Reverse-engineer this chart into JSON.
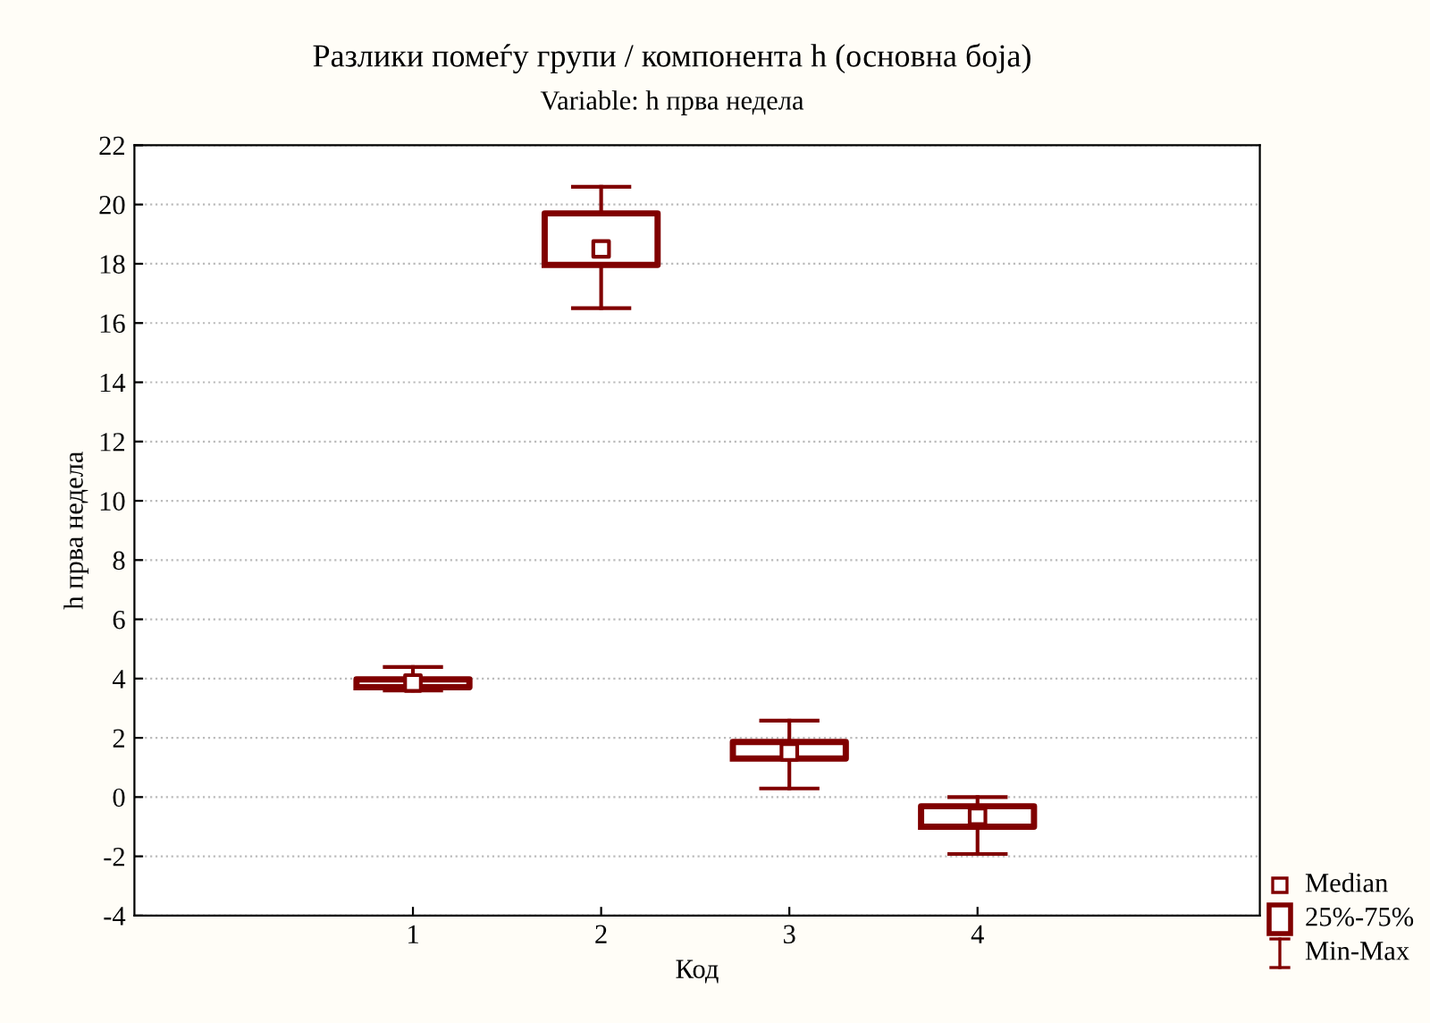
{
  "chart_data": {
    "type": "box",
    "title": "Разлики помеѓу групи / компонента h (основна боја)",
    "subtitle": "Variable: h прва недела",
    "xlabel": "Код",
    "ylabel": "h прва недела",
    "categories": [
      "1",
      "2",
      "3",
      "4"
    ],
    "boxes": [
      {
        "low": 3.6,
        "q1": 3.71,
        "median": 3.85,
        "q3": 3.97,
        "high": 4.39
      },
      {
        "low": 16.5,
        "q1": 17.96,
        "median": 18.5,
        "q3": 19.7,
        "high": 20.6
      },
      {
        "low": 0.29,
        "q1": 1.3,
        "median": 1.52,
        "q3": 1.86,
        "high": 2.58
      },
      {
        "low": -1.92,
        "q1": -1.0,
        "median": -0.65,
        "q3": -0.31,
        "high": 0.0
      }
    ],
    "color": "#800000",
    "ylim": [
      -4,
      22
    ],
    "yticks": [
      -4,
      -2,
      0,
      2,
      4,
      6,
      8,
      10,
      12,
      14,
      16,
      18,
      20,
      22
    ],
    "grid": "y",
    "annotations": [
      "Median",
      "25%-75%",
      "Min-Max"
    ]
  }
}
